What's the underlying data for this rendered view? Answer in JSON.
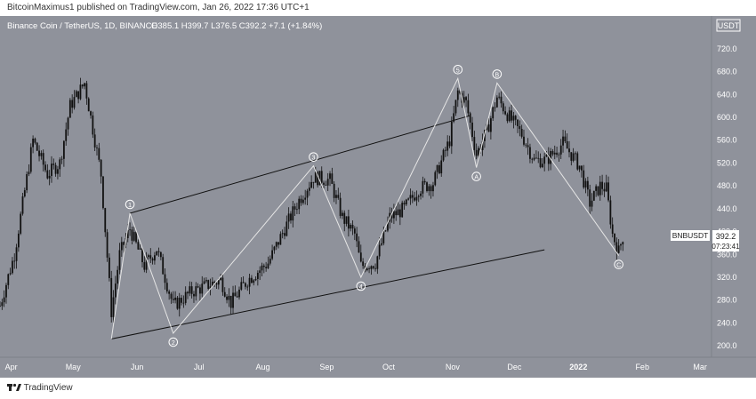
{
  "header": {
    "publish_line": "BitcoinMaximus1 published on TradingView.com, Jan 26, 2022 17:36 UTC+1"
  },
  "symbol_bar": {
    "title": "Binance Coin / TetherUS, 1D, BINANCE",
    "ohlc": "O385.1  H399.7  L376.5  C392.2  +7.1 (+1.84%)"
  },
  "price_axis": {
    "currency": "USDT"
  },
  "price_tag": {
    "symbol": "BNBUSDT",
    "price": "392.2",
    "countdown": "07:23:41"
  },
  "footer": {
    "brand": "TradingView"
  },
  "colors": {
    "background": "#8f929b",
    "candle": "#111111",
    "channel": "#111111",
    "wave": "#e6e6e6",
    "label": "#ffffff"
  },
  "chart_data": {
    "type": "candlestick",
    "title": "Binance Coin / TetherUS, 1D, BINANCE",
    "y_ticks": [
      200,
      240,
      280,
      320,
      360,
      400,
      440,
      480,
      520,
      560,
      600,
      640,
      680,
      720
    ],
    "ylim": [
      180,
      740
    ],
    "x_ticks": [
      "Apr",
      "May",
      "Jun",
      "Jul",
      "Aug",
      "Sep",
      "Oct",
      "Nov",
      "Dec",
      "2022",
      "Feb",
      "Mar"
    ],
    "x_ticks_bold": [
      "2022"
    ],
    "x_range": [
      "2021-03-30",
      "2022-03-10"
    ],
    "wave_path": [
      {
        "date": "2021-05-23",
        "price": 212
      },
      {
        "date": "2021-06-01",
        "price": 432
      },
      {
        "date": "2021-06-22",
        "price": 222
      },
      {
        "date": "2021-08-29",
        "price": 515
      },
      {
        "date": "2021-09-21",
        "price": 320
      },
      {
        "date": "2021-11-07",
        "price": 668
      },
      {
        "date": "2021-11-16",
        "price": 512
      },
      {
        "date": "2021-11-26",
        "price": 660
      },
      {
        "date": "2022-01-24",
        "price": 358
      }
    ],
    "wave_labels": [
      {
        "text": "1",
        "date": "2021-06-01",
        "price": 432,
        "pos": "above"
      },
      {
        "text": "2",
        "date": "2021-06-22",
        "price": 222,
        "pos": "below"
      },
      {
        "text": "3",
        "date": "2021-08-29",
        "price": 515,
        "pos": "above"
      },
      {
        "text": "4",
        "date": "2021-09-21",
        "price": 320,
        "pos": "below"
      },
      {
        "text": "5",
        "date": "2021-11-07",
        "price": 668,
        "pos": "above"
      },
      {
        "text": "A",
        "date": "2021-11-16",
        "price": 512,
        "pos": "below"
      },
      {
        "text": "B",
        "date": "2021-11-26",
        "price": 660,
        "pos": "above"
      },
      {
        "text": "C",
        "date": "2022-01-24",
        "price": 358,
        "pos": "below"
      }
    ],
    "channel_lines": [
      {
        "from": {
          "date": "2021-06-01",
          "price": 432
        },
        "to": {
          "date": "2021-11-13",
          "price": 603
        }
      },
      {
        "from": {
          "date": "2021-05-23",
          "price": 212
        },
        "to": {
          "date": "2021-12-19",
          "price": 368
        }
      }
    ],
    "anchors": [
      {
        "date": "2021-03-30",
        "price": 270
      },
      {
        "date": "2021-04-06",
        "price": 360
      },
      {
        "date": "2021-04-15",
        "price": 560
      },
      {
        "date": "2021-04-22",
        "price": 500
      },
      {
        "date": "2021-04-28",
        "price": 520
      },
      {
        "date": "2021-05-03",
        "price": 620
      },
      {
        "date": "2021-05-10",
        "price": 660
      },
      {
        "date": "2021-05-14",
        "price": 580
      },
      {
        "date": "2021-05-18",
        "price": 500
      },
      {
        "date": "2021-05-23",
        "price": 260
      },
      {
        "date": "2021-05-27",
        "price": 360
      },
      {
        "date": "2021-06-01",
        "price": 405
      },
      {
        "date": "2021-06-08",
        "price": 340
      },
      {
        "date": "2021-06-14",
        "price": 370
      },
      {
        "date": "2021-06-22",
        "price": 270
      },
      {
        "date": "2021-07-01",
        "price": 295
      },
      {
        "date": "2021-07-08",
        "price": 305
      },
      {
        "date": "2021-07-15",
        "price": 315
      },
      {
        "date": "2021-07-20",
        "price": 275
      },
      {
        "date": "2021-07-28",
        "price": 315
      },
      {
        "date": "2021-08-07",
        "price": 345
      },
      {
        "date": "2021-08-15",
        "price": 405
      },
      {
        "date": "2021-08-22",
        "price": 455
      },
      {
        "date": "2021-08-29",
        "price": 495
      },
      {
        "date": "2021-09-06",
        "price": 490
      },
      {
        "date": "2021-09-12",
        "price": 425
      },
      {
        "date": "2021-09-18",
        "price": 395
      },
      {
        "date": "2021-09-21",
        "price": 340
      },
      {
        "date": "2021-09-28",
        "price": 345
      },
      {
        "date": "2021-10-05",
        "price": 425
      },
      {
        "date": "2021-10-12",
        "price": 440
      },
      {
        "date": "2021-10-19",
        "price": 475
      },
      {
        "date": "2021-10-26",
        "price": 485
      },
      {
        "date": "2021-11-03",
        "price": 560
      },
      {
        "date": "2021-11-07",
        "price": 645
      },
      {
        "date": "2021-11-11",
        "price": 625
      },
      {
        "date": "2021-11-16",
        "price": 535
      },
      {
        "date": "2021-11-21",
        "price": 575
      },
      {
        "date": "2021-11-26",
        "price": 635
      },
      {
        "date": "2021-12-02",
        "price": 600
      },
      {
        "date": "2021-12-08",
        "price": 570
      },
      {
        "date": "2021-12-14",
        "price": 525
      },
      {
        "date": "2021-12-20",
        "price": 525
      },
      {
        "date": "2021-12-28",
        "price": 555
      },
      {
        "date": "2022-01-05",
        "price": 515
      },
      {
        "date": "2022-01-10",
        "price": 450
      },
      {
        "date": "2022-01-15",
        "price": 480
      },
      {
        "date": "2022-01-18",
        "price": 475
      },
      {
        "date": "2022-01-21",
        "price": 395
      },
      {
        "date": "2022-01-24",
        "price": 365
      },
      {
        "date": "2022-01-26",
        "price": 392
      }
    ]
  }
}
